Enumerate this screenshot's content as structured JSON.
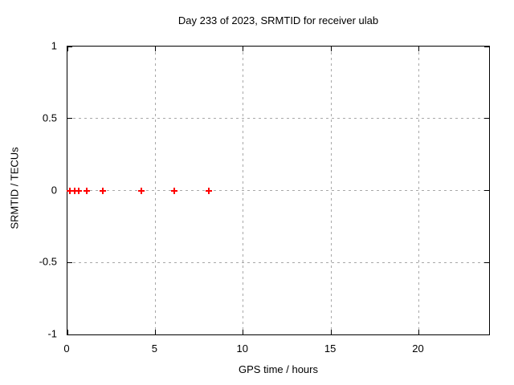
{
  "title": "Day 233 of 2023, SRMTID for receiver ulab",
  "colors": {
    "background": "#ffffff",
    "axis": "#000000",
    "grid": "#a8a8a8",
    "marker": "#ff0000"
  },
  "chart_data": {
    "type": "scatter",
    "title": "Day 233 of 2023, SRMTID for receiver ulab",
    "xlabel": "GPS time / hours",
    "ylabel": "SRMTID / TECUs",
    "xlim": [
      0,
      24
    ],
    "ylim": [
      -1,
      1
    ],
    "xticks": [
      0,
      5,
      10,
      15,
      20
    ],
    "xtick_labels": [
      "0",
      "5",
      "10",
      "15",
      "20"
    ],
    "yticks": [
      1,
      0.5,
      0,
      -0.5,
      -1
    ],
    "ytick_labels": [
      "1",
      "0.5",
      "0",
      "-0.5",
      "-1"
    ],
    "grid": true,
    "legend_position": "none",
    "marker_style": "plus",
    "marker_color": "#ff0000",
    "series": [
      {
        "name": "SRMTID",
        "x": [
          0.15,
          0.4,
          0.65,
          1.1,
          2.0,
          4.2,
          6.1,
          8.05
        ],
        "y": [
          0,
          0,
          0,
          0,
          0,
          0,
          0,
          0
        ]
      }
    ]
  }
}
